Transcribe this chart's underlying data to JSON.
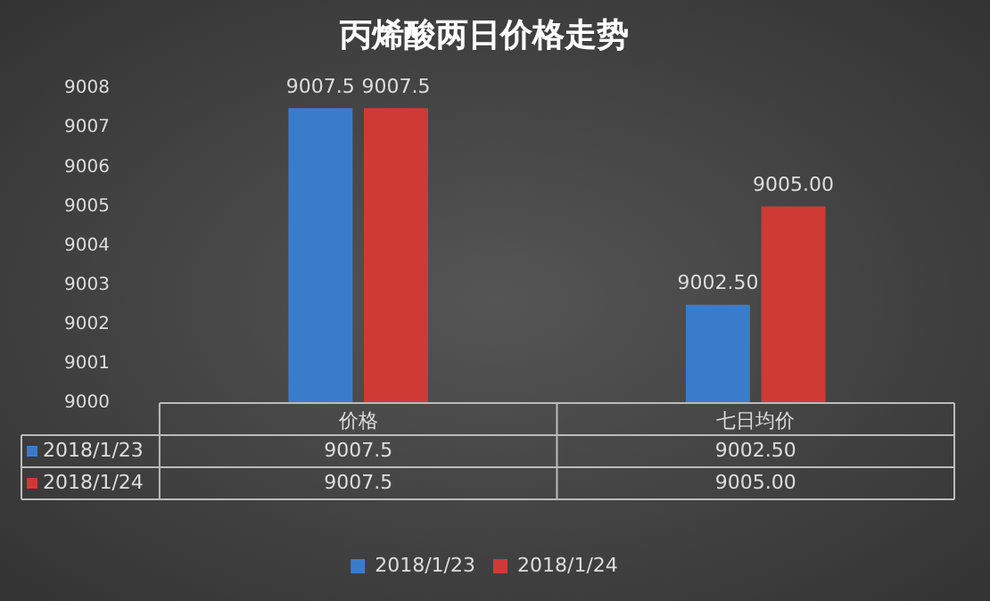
{
  "chart_data": {
    "type": "bar",
    "title": "丙烯酸两日价格走势",
    "categories": [
      "价格",
      "七日均价"
    ],
    "series": [
      {
        "name": "2018/1/23",
        "color": "#3b7bcc",
        "values": [
          9007.5,
          9002.5
        ],
        "value_labels": [
          "9007.5",
          "9002.50"
        ]
      },
      {
        "name": "2018/1/24",
        "color": "#d03a34",
        "values": [
          9007.5,
          9005
        ],
        "value_labels": [
          "9007.5",
          "9005.00"
        ]
      }
    ],
    "ylim": [
      9000,
      9008
    ],
    "yticks": [
      9000,
      9001,
      9002,
      9003,
      9004,
      9005,
      9006,
      9007,
      9008
    ],
    "grid": false,
    "legend": "bottom"
  }
}
